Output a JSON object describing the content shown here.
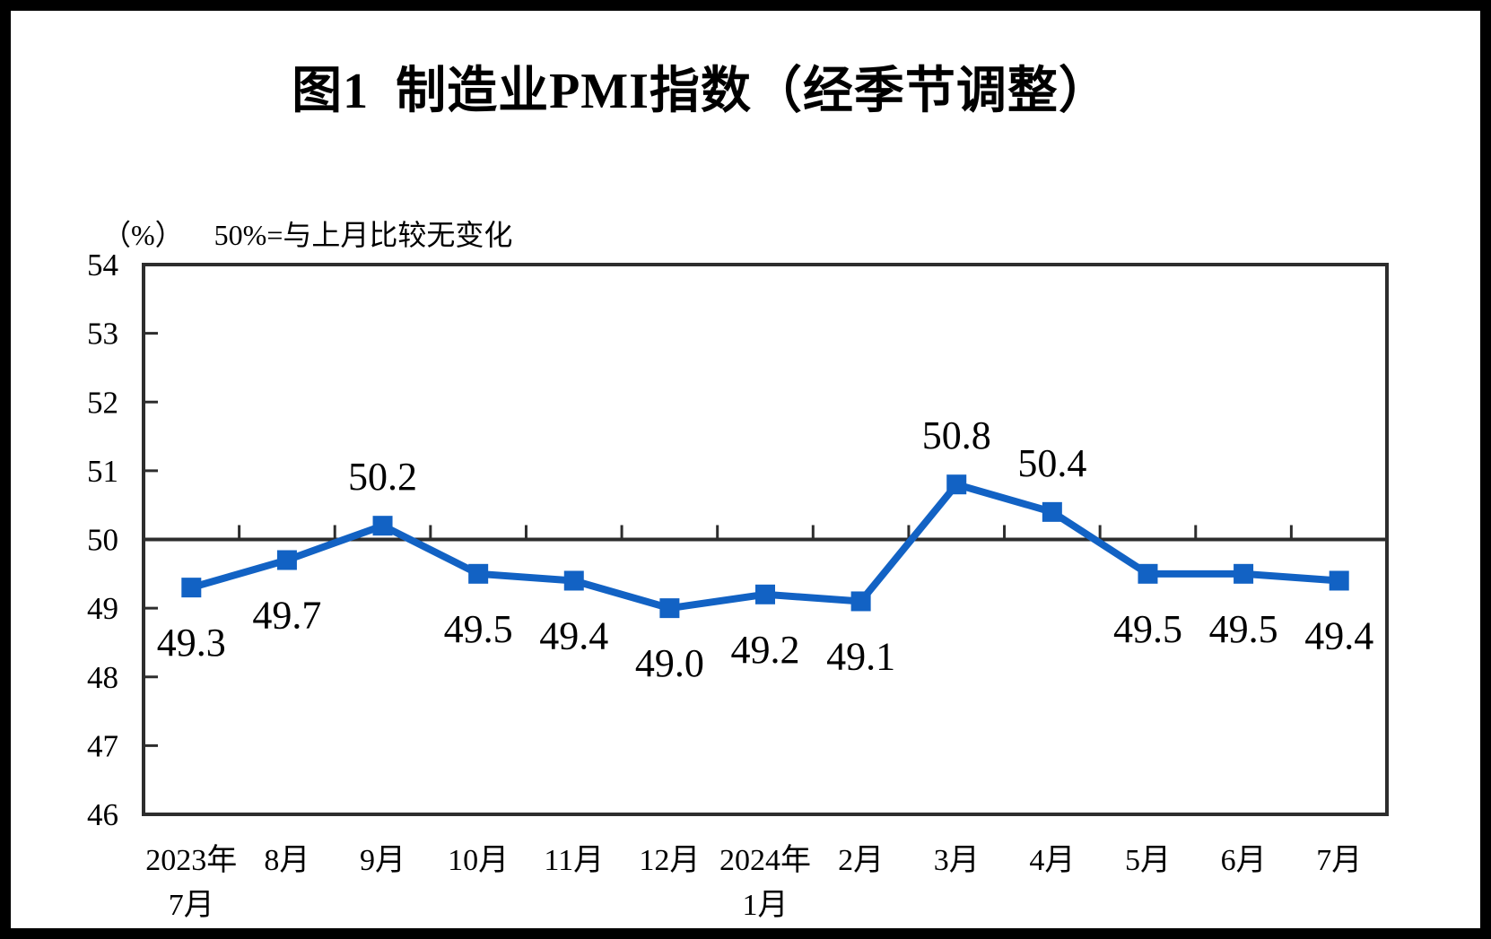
{
  "frame": {
    "border_color": "#000000",
    "background": "#ffffff"
  },
  "chart_data": {
    "type": "line",
    "title": "图1  制造业PMI指数（经季节调整）",
    "unit_label": "（%）",
    "reference_note": "50%=与上月比较无变化",
    "categories": [
      [
        "2023年",
        "7月"
      ],
      [
        "8月"
      ],
      [
        "9月"
      ],
      [
        "10月"
      ],
      [
        "11月"
      ],
      [
        "12月"
      ],
      [
        "2024年",
        "1月"
      ],
      [
        "2月"
      ],
      [
        "3月"
      ],
      [
        "4月"
      ],
      [
        "5月"
      ],
      [
        "6月"
      ],
      [
        "7月"
      ]
    ],
    "series": [
      {
        "name": "制造业PMI",
        "values": [
          49.3,
          49.7,
          50.2,
          49.5,
          49.4,
          49.0,
          49.2,
          49.1,
          50.8,
          50.4,
          49.5,
          49.5,
          49.4
        ],
        "color": "#1262C4"
      }
    ],
    "label_positions": [
      "below",
      "below",
      "above",
      "below",
      "below",
      "below",
      "below",
      "below",
      "above",
      "above",
      "below",
      "below",
      "below"
    ],
    "ylim": [
      46,
      54
    ],
    "ytick_step": 1,
    "yticks": [
      46,
      47,
      48,
      49,
      50,
      51,
      52,
      53,
      54
    ],
    "reference_line": 50,
    "grid": false,
    "legend": "none",
    "axis_color": "#2d2d2d",
    "text_color": "#000000"
  }
}
